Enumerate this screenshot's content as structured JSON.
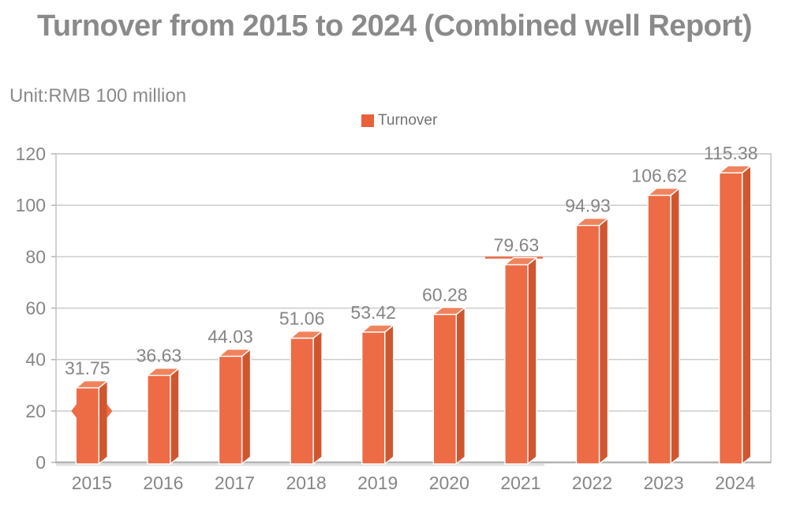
{
  "header": {
    "title": "Turnover from 2015 to 2024 (Combined well Report)"
  },
  "unit_label": "Unit:RMB 100 million",
  "legend": {
    "label": "Turnover",
    "swatch_color": "#E8613B",
    "position": "top-center"
  },
  "chart_data": {
    "type": "bar",
    "title": "Turnover from 2015 to 2024 (Combined well Report)",
    "unit": "RMB 100 million",
    "series_name": "Turnover",
    "categories": [
      "2015",
      "2016",
      "2017",
      "2018",
      "2019",
      "2020",
      "2021",
      "2022",
      "2023",
      "2024"
    ],
    "values": [
      31.75,
      36.63,
      44.03,
      51.06,
      53.42,
      60.28,
      79.63,
      94.93,
      106.62,
      115.38
    ],
    "value_labels": [
      "31.75",
      "36.63",
      "44.03",
      "51.06",
      "53.42",
      "60.28",
      "79.63",
      "94.93",
      "106.62",
      "115.38"
    ],
    "xlabel": "",
    "ylabel": "",
    "ylim": [
      0,
      120
    ],
    "yticks": [
      0,
      20,
      40,
      60,
      80,
      100,
      120
    ],
    "ytick_labels": [
      "0",
      "20",
      "40",
      "60",
      "80",
      "100",
      "120"
    ],
    "grid": true,
    "legend_position": "top-center",
    "bar_style_3d": true,
    "colors": {
      "bar_front": "#ED6B45",
      "bar_side": "#D0562F",
      "bar_top": "#F0835C",
      "bar_edge": "#FFFFFF",
      "grid_line": "#CBCBCB",
      "plot_border": "#C2C2C2",
      "axis_line": "#B3B3B3",
      "label_text": "#868686"
    },
    "style_hints": {
      "pinched_bar_index": 0,
      "accent_line_index": 6
    }
  }
}
